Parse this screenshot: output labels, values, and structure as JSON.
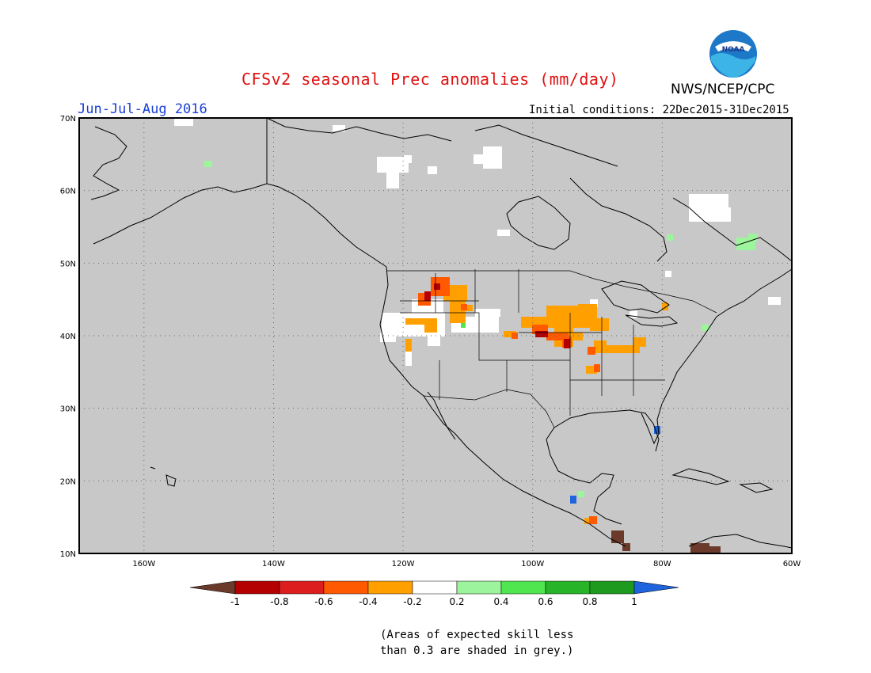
{
  "header": {
    "title": "CFSv2 seasonal Prec anomalies (mm/day)",
    "period": "Jun-Jul-Aug 2016",
    "initial_conditions": "Initial conditions: 22Dec2015-31Dec2015",
    "agency": "NWS/NCEP/CPC",
    "logo_text": "NOAA"
  },
  "map": {
    "lon_range": [
      -170,
      -60
    ],
    "lat_range": [
      10,
      70
    ],
    "lon_ticks": [
      "160W",
      "140W",
      "120W",
      "100W",
      "80W",
      "60W"
    ],
    "lat_ticks": [
      "70N",
      "60N",
      "50N",
      "40N",
      "30N",
      "20N",
      "10N"
    ],
    "background_color": "#c8c8c8",
    "grid": "dotted"
  },
  "legend": {
    "ticks": [
      "-1",
      "-0.8",
      "-0.6",
      "-0.4",
      "-0.2",
      "0.2",
      "0.4",
      "0.6",
      "0.8",
      "1"
    ],
    "colors": [
      "#6b3a2a",
      "#b40000",
      "#dc1e1e",
      "#ff5a00",
      "#ffa000",
      "#ffffff",
      "#9cf59c",
      "#50e650",
      "#28b428",
      "#1e9b1e",
      "#1e64dc"
    ]
  },
  "footnote": {
    "line1": "(Areas of expected skill less",
    "line2": "than 0.3 are shaded in grey.)"
  }
}
